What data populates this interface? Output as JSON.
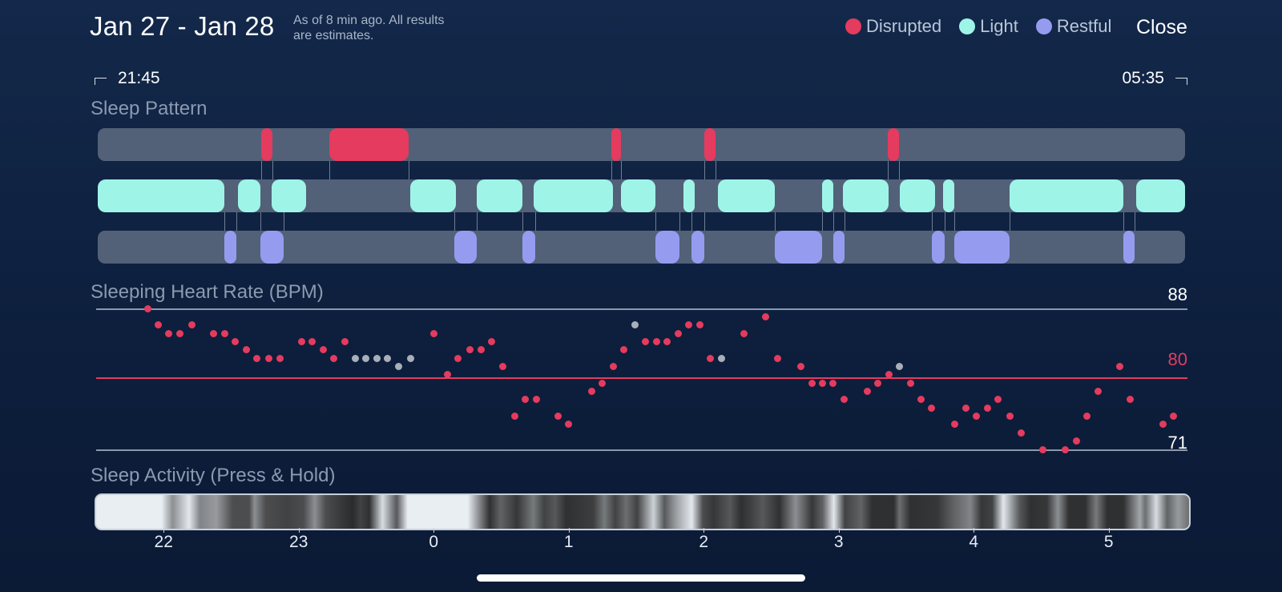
{
  "header": {
    "date_range": "Jan 27 - Jan 28",
    "as_of_line1": "As of 8 min ago. All results",
    "as_of_line2": "are estimates.",
    "close_label": "Close"
  },
  "legend": [
    {
      "label": "Disrupted",
      "color": "#e43b5e"
    },
    {
      "label": "Light",
      "color": "#9ff4e8"
    },
    {
      "label": "Restful",
      "color": "#959cf0"
    }
  ],
  "timerange": {
    "start": "21:45",
    "end": "05:35"
  },
  "sleep_pattern": {
    "title": "Sleep Pattern",
    "start_hour": 21.75,
    "end_hour": 29.5833,
    "stages": {
      "disrupted": [
        [
          22.93,
          23.01
        ],
        [
          23.42,
          23.99
        ],
        [
          25.45,
          25.52
        ],
        [
          26.12,
          26.2
        ],
        [
          27.44,
          27.52
        ]
      ],
      "light": [
        [
          21.75,
          22.66
        ],
        [
          22.76,
          22.92
        ],
        [
          23.0,
          23.25
        ],
        [
          24.0,
          24.33
        ],
        [
          24.48,
          24.81
        ],
        [
          24.89,
          25.46
        ],
        [
          25.52,
          25.77
        ],
        [
          25.97,
          26.05
        ],
        [
          26.22,
          26.63
        ],
        [
          26.97,
          27.05
        ],
        [
          27.12,
          27.45
        ],
        [
          27.53,
          27.78
        ],
        [
          27.84,
          27.92
        ],
        [
          28.32,
          29.14
        ],
        [
          29.23,
          29.5833
        ]
      ],
      "restful": [
        [
          22.66,
          22.75
        ],
        [
          22.92,
          23.09
        ],
        [
          24.32,
          24.48
        ],
        [
          24.81,
          24.9
        ],
        [
          25.77,
          25.94
        ],
        [
          26.03,
          26.12
        ],
        [
          26.63,
          26.97
        ],
        [
          27.05,
          27.13
        ],
        [
          27.76,
          27.85
        ],
        [
          27.92,
          28.32
        ],
        [
          29.14,
          29.22
        ]
      ]
    }
  },
  "heart_rate": {
    "title": "Sleeping Heart Rate (BPM)",
    "max_label": "88",
    "avg_label": "80",
    "min_label": "71",
    "max": 88,
    "avg": 80,
    "min": 71,
    "points": [
      [
        21.88,
        88,
        "r"
      ],
      [
        21.96,
        86,
        "r"
      ],
      [
        22.04,
        85,
        "r"
      ],
      [
        22.12,
        85,
        "r"
      ],
      [
        22.21,
        86,
        "r"
      ],
      [
        22.37,
        85,
        "r"
      ],
      [
        22.45,
        85,
        "r"
      ],
      [
        22.53,
        84,
        "r"
      ],
      [
        22.61,
        83,
        "r"
      ],
      [
        22.69,
        82,
        "r"
      ],
      [
        22.78,
        82,
        "r"
      ],
      [
        22.86,
        82,
        "r"
      ],
      [
        23.02,
        84,
        "r"
      ],
      [
        23.1,
        84,
        "r"
      ],
      [
        23.18,
        83,
        "r"
      ],
      [
        23.26,
        82,
        "r"
      ],
      [
        23.34,
        84,
        "r"
      ],
      [
        23.42,
        82,
        "g"
      ],
      [
        23.5,
        82,
        "g"
      ],
      [
        23.58,
        82,
        "g"
      ],
      [
        23.66,
        82,
        "g"
      ],
      [
        23.74,
        81,
        "g"
      ],
      [
        23.83,
        82,
        "g"
      ],
      [
        24.0,
        85,
        "r"
      ],
      [
        24.1,
        80,
        "r"
      ],
      [
        24.18,
        82,
        "r"
      ],
      [
        24.27,
        83,
        "r"
      ],
      [
        24.35,
        83,
        "r"
      ],
      [
        24.43,
        84,
        "r"
      ],
      [
        24.51,
        81,
        "r"
      ],
      [
        24.6,
        75,
        "r"
      ],
      [
        24.68,
        77,
        "r"
      ],
      [
        24.76,
        77,
        "r"
      ],
      [
        24.92,
        75,
        "r"
      ],
      [
        25.0,
        74,
        "r"
      ],
      [
        25.17,
        78,
        "r"
      ],
      [
        25.25,
        79,
        "r"
      ],
      [
        25.33,
        81,
        "r"
      ],
      [
        25.41,
        83,
        "r"
      ],
      [
        25.49,
        86,
        "g"
      ],
      [
        25.57,
        84,
        "r"
      ],
      [
        25.65,
        84,
        "r"
      ],
      [
        25.73,
        84,
        "r"
      ],
      [
        25.81,
        85,
        "r"
      ],
      [
        25.89,
        86,
        "r"
      ],
      [
        25.97,
        86,
        "r"
      ],
      [
        26.05,
        82,
        "r"
      ],
      [
        26.13,
        82,
        "g"
      ],
      [
        26.3,
        85,
        "r"
      ],
      [
        26.46,
        87,
        "r"
      ],
      [
        26.55,
        82,
        "r"
      ],
      [
        26.72,
        81,
        "r"
      ],
      [
        26.8,
        79,
        "r"
      ],
      [
        26.88,
        79,
        "r"
      ],
      [
        26.96,
        79,
        "r"
      ],
      [
        27.04,
        77,
        "r"
      ],
      [
        27.21,
        78,
        "r"
      ],
      [
        27.29,
        79,
        "r"
      ],
      [
        27.37,
        80,
        "r"
      ],
      [
        27.45,
        81,
        "g"
      ],
      [
        27.53,
        79,
        "r"
      ],
      [
        27.61,
        77,
        "r"
      ],
      [
        27.69,
        76,
        "r"
      ],
      [
        27.86,
        74,
        "r"
      ],
      [
        27.94,
        76,
        "r"
      ],
      [
        28.02,
        75,
        "r"
      ],
      [
        28.1,
        76,
        "r"
      ],
      [
        28.18,
        77,
        "r"
      ],
      [
        28.27,
        75,
        "r"
      ],
      [
        28.35,
        73,
        "r"
      ],
      [
        28.51,
        71,
        "r"
      ],
      [
        28.68,
        71,
        "r"
      ],
      [
        28.76,
        72,
        "r"
      ],
      [
        28.84,
        75,
        "r"
      ],
      [
        28.92,
        78,
        "r"
      ],
      [
        29.08,
        81,
        "r"
      ],
      [
        29.16,
        77,
        "r"
      ],
      [
        29.4,
        74,
        "r"
      ],
      [
        29.48,
        75,
        "r"
      ]
    ]
  },
  "sleep_activity": {
    "title": "Sleep Activity (Press & Hold)",
    "stops": [
      [
        0,
        0.98
      ],
      [
        0.06,
        0.98
      ],
      [
        0.07,
        0.55
      ],
      [
        0.085,
        0.95
      ],
      [
        0.095,
        0.5
      ],
      [
        0.11,
        0.6
      ],
      [
        0.125,
        0.25
      ],
      [
        0.14,
        0.25
      ],
      [
        0.145,
        0.55
      ],
      [
        0.155,
        0.25
      ],
      [
        0.175,
        0.2
      ],
      [
        0.19,
        0.25
      ],
      [
        0.2,
        0.55
      ],
      [
        0.21,
        0.25
      ],
      [
        0.225,
        0.15
      ],
      [
        0.235,
        0.1
      ],
      [
        0.242,
        0.2
      ],
      [
        0.25,
        0.12
      ],
      [
        0.262,
        0.9
      ],
      [
        0.275,
        0.3
      ],
      [
        0.285,
        0.98
      ],
      [
        0.34,
        0.98
      ],
      [
        0.36,
        0.12
      ],
      [
        0.37,
        0.35
      ],
      [
        0.385,
        0.15
      ],
      [
        0.4,
        0.45
      ],
      [
        0.41,
        0.2
      ],
      [
        0.42,
        0.3
      ],
      [
        0.43,
        0.12
      ],
      [
        0.455,
        0.18
      ],
      [
        0.465,
        0.45
      ],
      [
        0.475,
        0.2
      ],
      [
        0.485,
        0.4
      ],
      [
        0.495,
        0.2
      ],
      [
        0.51,
        0.85
      ],
      [
        0.52,
        0.3
      ],
      [
        0.53,
        0.6
      ],
      [
        0.545,
        0.95
      ],
      [
        0.555,
        0.25
      ],
      [
        0.565,
        0.15
      ],
      [
        0.58,
        0.3
      ],
      [
        0.59,
        0.12
      ],
      [
        0.6,
        0.2
      ],
      [
        0.61,
        0.3
      ],
      [
        0.625,
        0.12
      ],
      [
        0.64,
        0.55
      ],
      [
        0.655,
        0.15
      ],
      [
        0.665,
        0.35
      ],
      [
        0.675,
        0.95
      ],
      [
        0.685,
        0.2
      ],
      [
        0.7,
        0.35
      ],
      [
        0.71,
        0.12
      ],
      [
        0.73,
        0.12
      ],
      [
        0.735,
        0.4
      ],
      [
        0.745,
        0.12
      ],
      [
        0.77,
        0.15
      ],
      [
        0.785,
        0.35
      ],
      [
        0.8,
        0.5
      ],
      [
        0.81,
        0.15
      ],
      [
        0.82,
        0.2
      ],
      [
        0.83,
        0.95
      ],
      [
        0.845,
        0.3
      ],
      [
        0.855,
        0.12
      ],
      [
        0.87,
        0.15
      ],
      [
        0.88,
        0.55
      ],
      [
        0.89,
        0.12
      ],
      [
        0.905,
        0.12
      ],
      [
        0.915,
        0.45
      ],
      [
        0.925,
        0.12
      ],
      [
        0.94,
        0.12
      ],
      [
        0.955,
        0.65
      ],
      [
        0.96,
        0.4
      ],
      [
        0.97,
        0.9
      ],
      [
        0.98,
        0.35
      ],
      [
        0.99,
        0.6
      ],
      [
        1,
        0.4
      ]
    ]
  },
  "x_axis": {
    "start_hour": 21.5,
    "end_hour": 29.5833,
    "ticks": [
      {
        "label": "22",
        "hour": 22
      },
      {
        "label": "23",
        "hour": 23
      },
      {
        "label": "0",
        "hour": 24
      },
      {
        "label": "1",
        "hour": 25
      },
      {
        "label": "2",
        "hour": 26
      },
      {
        "label": "3",
        "hour": 27
      },
      {
        "label": "4",
        "hour": 28
      },
      {
        "label": "5",
        "hour": 29
      }
    ]
  }
}
